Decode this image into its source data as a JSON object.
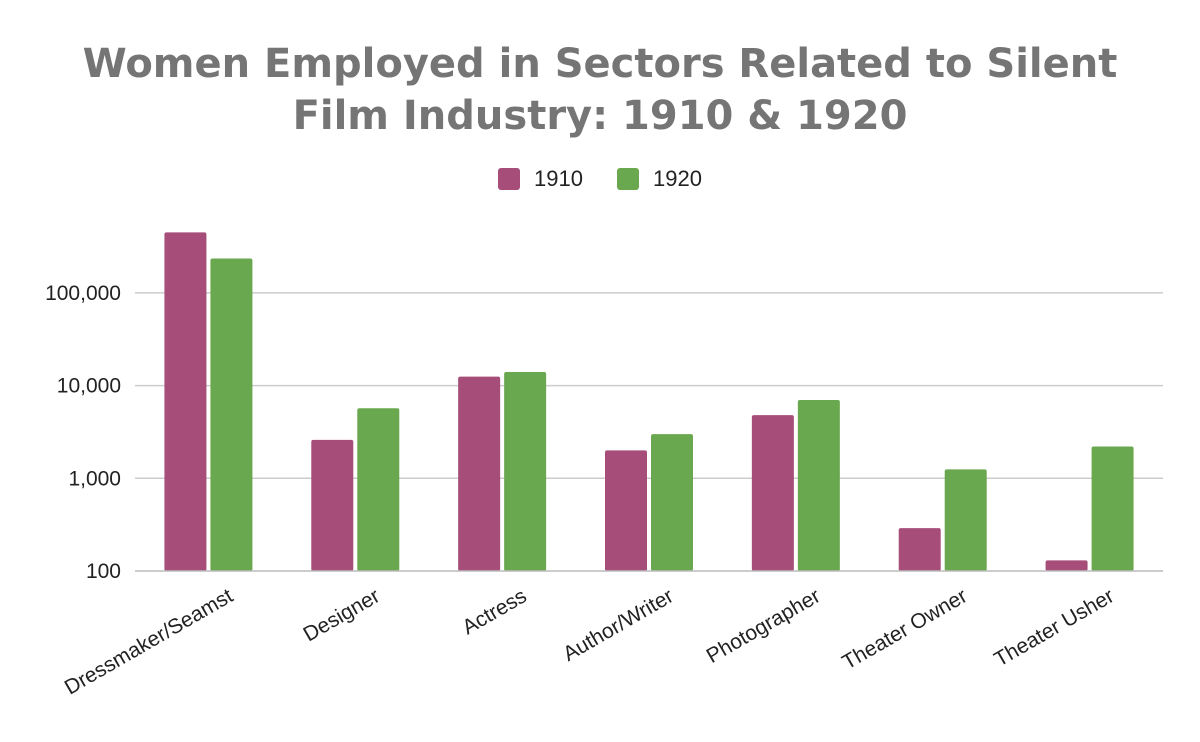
{
  "chart_data": {
    "type": "bar",
    "title_lines": [
      "Women Employed in Sectors Related to Silent",
      "Film Industry: 1910 & 1920"
    ],
    "categories": [
      "Dressmaker/Seamst",
      "Designer",
      "Actress",
      "Author/Writer",
      "Photographer",
      "Theater Owner",
      "Theater Usher"
    ],
    "series": [
      {
        "name": "1910",
        "color": "#a64d79",
        "values": [
          450000,
          2600,
          12500,
          2000,
          4800,
          290,
          130
        ]
      },
      {
        "name": "1920",
        "color": "#6aa84f",
        "values": [
          235000,
          5700,
          14000,
          3000,
          7000,
          1250,
          2200
        ]
      }
    ],
    "y_scale": "log",
    "ylim": [
      100,
      600000
    ],
    "y_ticks": [
      {
        "value": 100,
        "label": "100"
      },
      {
        "value": 1000,
        "label": "1,000"
      },
      {
        "value": 10000,
        "label": "10,000"
      },
      {
        "value": 100000,
        "label": "100,000"
      }
    ],
    "grid": true,
    "legend_position": "top-center"
  }
}
